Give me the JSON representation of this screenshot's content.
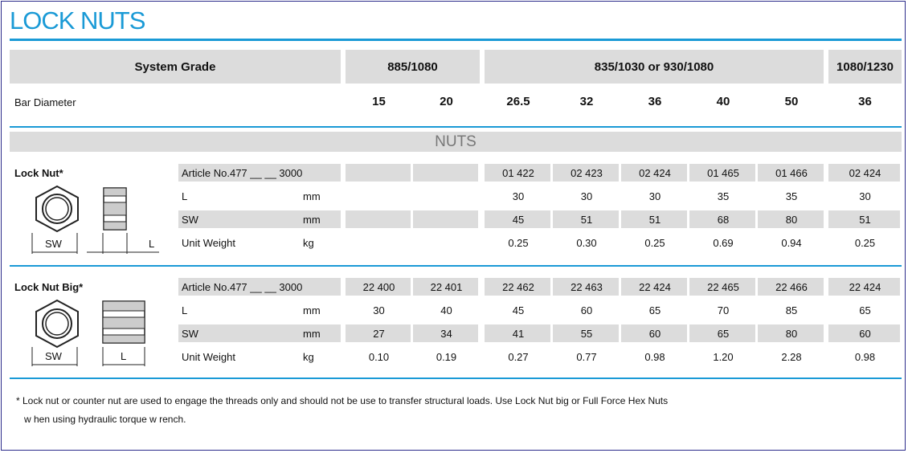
{
  "title": "LOCK NUTS",
  "header": {
    "system_grade": "System Grade",
    "grades": [
      "885/1080",
      "835/1030 or 930/1080",
      "1080/1230"
    ],
    "bar_diameter_label": "Bar Diameter",
    "diameters": [
      "15",
      "20",
      "26.5",
      "32",
      "36",
      "40",
      "50",
      "36"
    ]
  },
  "section_label": "NUTS",
  "lock_nut": {
    "name": "Lock Nut*",
    "rows": [
      {
        "label": "Article No.477 __ __ 3000",
        "unit": "",
        "values": [
          "",
          "",
          "01 422",
          "02 423",
          "02 424",
          "01 465",
          "01 466",
          "02 424"
        ]
      },
      {
        "label": "L",
        "unit": "mm",
        "values": [
          "",
          "",
          "30",
          "30",
          "30",
          "35",
          "35",
          "30"
        ]
      },
      {
        "label": "SW",
        "unit": "mm",
        "values": [
          "",
          "",
          "45",
          "51",
          "51",
          "68",
          "80",
          "51"
        ]
      },
      {
        "label": "Unit Weight",
        "unit": "kg",
        "values": [
          "",
          "",
          "0.25",
          "0.30",
          "0.25",
          "0.69",
          "0.94",
          "0.25"
        ]
      }
    ],
    "diagram_sw": "SW",
    "diagram_l": "L"
  },
  "lock_nut_big": {
    "name": "Lock Nut Big*",
    "rows": [
      {
        "label": "Article No.477 __ __ 3000",
        "unit": "",
        "values": [
          "22 400",
          "22 401",
          "22 462",
          "22 463",
          "22 424",
          "22 465",
          "22 466",
          "22 424"
        ]
      },
      {
        "label": "L",
        "unit": "mm",
        "values": [
          "30",
          "40",
          "45",
          "60",
          "65",
          "70",
          "85",
          "65"
        ]
      },
      {
        "label": "SW",
        "unit": "mm",
        "values": [
          "27",
          "34",
          "41",
          "55",
          "60",
          "65",
          "80",
          "60"
        ]
      },
      {
        "label": "Unit Weight",
        "unit": "kg",
        "values": [
          "0.10",
          "0.19",
          "0.27",
          "0.77",
          "0.98",
          "1.20",
          "2.28",
          "0.98"
        ]
      }
    ],
    "diagram_sw": "SW",
    "diagram_l": "L"
  },
  "footnote_line1": "* Lock nut or counter nut are used to engage the threads only and should not be use to transfer structural loads.  Use Lock Nut big or Full Force Hex Nuts",
  "footnote_line2": "w hen using hydraulic torque w rench.",
  "accent_color": "#1a9ad6"
}
